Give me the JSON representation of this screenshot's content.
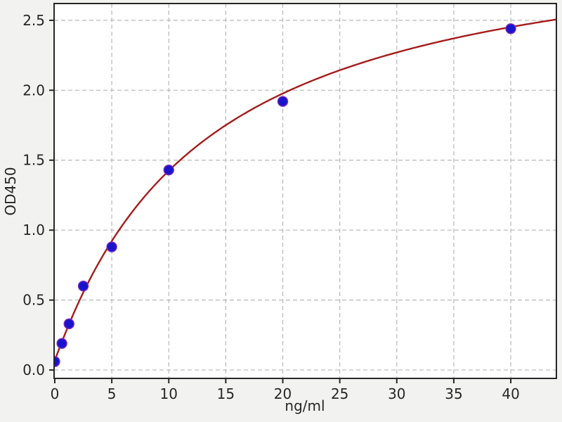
{
  "chart_data": {
    "type": "scatter",
    "title": "",
    "xlabel": "ng/ml",
    "ylabel": "OD450",
    "xlim": [
      -0.06,
      44.0
    ],
    "ylim": [
      -0.06,
      2.62
    ],
    "grid": true,
    "grid_style": "dashed",
    "x_ticks": [
      {
        "value": 0,
        "label": "0"
      },
      {
        "value": 5,
        "label": "5"
      },
      {
        "value": 10,
        "label": "10"
      },
      {
        "value": 15,
        "label": "15"
      },
      {
        "value": 20,
        "label": "20"
      },
      {
        "value": 25,
        "label": "25"
      },
      {
        "value": 30,
        "label": "30"
      },
      {
        "value": 35,
        "label": "35"
      },
      {
        "value": 40,
        "label": "40"
      }
    ],
    "y_ticks": [
      {
        "value": 0.0,
        "label": "0.0"
      },
      {
        "value": 0.5,
        "label": "0.5"
      },
      {
        "value": 1.0,
        "label": "1.0"
      },
      {
        "value": 1.5,
        "label": "1.5"
      },
      {
        "value": 2.0,
        "label": "2.0"
      },
      {
        "value": 2.5,
        "label": "2.5"
      }
    ],
    "series": [
      {
        "name": "standard-points",
        "kind": "scatter",
        "x": [
          0,
          0.625,
          1.25,
          2.5,
          5,
          10,
          20,
          40
        ],
        "y": [
          0.06,
          0.19,
          0.33,
          0.6,
          0.88,
          1.43,
          1.92,
          2.44
        ]
      },
      {
        "name": "fit-curve",
        "kind": "line",
        "model": "4pl",
        "params": {
          "a": 0.07,
          "b": 1.03,
          "c": 13.0,
          "d": 3.2
        },
        "x_range": [
          0,
          44
        ],
        "note": "y = d + (a-d)/(1+(x/c)^b)"
      }
    ],
    "colors": {
      "figure_bg": "#f2f2f1",
      "plot_bg": "#ffffff",
      "axis": "#262626",
      "tick_label": "#262626",
      "grid": "#b8b8b8",
      "point_fill": "#1a13cc",
      "point_edge": "#7a2bbf",
      "curve": "#a51c1c"
    },
    "legend": null
  }
}
